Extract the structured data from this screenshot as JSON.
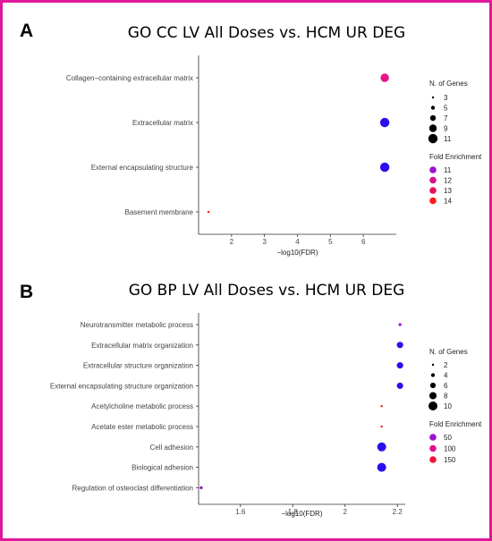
{
  "frame_color": "#e0189a",
  "panels": [
    {
      "letter": "A",
      "title": "GO CC LV All Doses vs. HCM UR DEG",
      "chart_data": {
        "type": "scatter",
        "title": "GO CC LV All Doses vs. HCM UR DEG",
        "xlabel": "−log10(FDR)",
        "ylabel": "",
        "xlim": [
          1.0,
          7.0
        ],
        "xticks": [
          2,
          3,
          4,
          5,
          6
        ],
        "categories": [
          "Collagen−containing extracellular matrix",
          "Extracellular matrix",
          "External encapsulating structure",
          "Basement membrane"
        ],
        "points": [
          {
            "category": "Collagen−containing extracellular matrix",
            "x": 6.65,
            "genes": 10,
            "fold_enrichment": 12,
            "color": "#e8148c"
          },
          {
            "category": "Extracellular matrix",
            "x": 6.65,
            "genes": 11,
            "fold_enrichment": 10.5,
            "color": "#2a10ec"
          },
          {
            "category": "External encapsulating structure",
            "x": 6.65,
            "genes": 11,
            "fold_enrichment": 10.5,
            "color": "#2a10ec"
          },
          {
            "category": "Basement membrane",
            "x": 1.3,
            "genes": 3,
            "fold_enrichment": 14,
            "color": "#ff1010"
          }
        ],
        "size_legend": {
          "title": "N. of Genes",
          "values": [
            3,
            5,
            7,
            9,
            11
          ]
        },
        "color_legend": {
          "title": "Fold Enrichment",
          "values": [
            "11",
            "12",
            "13",
            "14"
          ],
          "colors": [
            "#9b12cf",
            "#d8108e",
            "#ec0f5d",
            "#ff1a1a"
          ]
        }
      }
    },
    {
      "letter": "B",
      "title": "GO BP LV All Doses vs. HCM UR DEG",
      "chart_data": {
        "type": "scatter",
        "title": "GO BP LV All Doses vs. HCM UR DEG",
        "xlabel": "−log10(FDR)",
        "ylabel": "",
        "xlim": [
          1.44,
          2.23
        ],
        "xticks": [
          1.6,
          1.8,
          2.0,
          2.2
        ],
        "categories": [
          "Neurotransmitter metabolic process",
          "Extracellular matrix organization",
          "Extracellular structure organization",
          "External encapsulating structure organization",
          "Acetylcholine metabolic process",
          "Acetate ester metabolic process",
          "Cell adhesion",
          "Biological adhesion",
          "Regulation of osteoclast differentiation"
        ],
        "points": [
          {
            "category": "Neurotransmitter metabolic process",
            "x": 2.21,
            "genes": 3,
            "fold_enrichment": 60,
            "color": "#a212d3"
          },
          {
            "category": "Extracellular matrix organization",
            "x": 2.21,
            "genes": 7,
            "fold_enrichment": 15,
            "color": "#2a10ec"
          },
          {
            "category": "Extracellular structure organization",
            "x": 2.21,
            "genes": 7,
            "fold_enrichment": 15,
            "color": "#2a10ec"
          },
          {
            "category": "External encapsulating structure organization",
            "x": 2.21,
            "genes": 7,
            "fold_enrichment": 15,
            "color": "#2a10ec"
          },
          {
            "category": "Acetylcholine metabolic process",
            "x": 2.14,
            "genes": 2,
            "fold_enrichment": 180,
            "color": "#ff1010"
          },
          {
            "category": "Acetate ester metabolic process",
            "x": 2.14,
            "genes": 2,
            "fold_enrichment": 180,
            "color": "#ff1010"
          },
          {
            "category": "Cell adhesion",
            "x": 2.14,
            "genes": 10,
            "fold_enrichment": 10,
            "color": "#2a10ec"
          },
          {
            "category": "Biological adhesion",
            "x": 2.14,
            "genes": 10,
            "fold_enrichment": 10,
            "color": "#2a10ec"
          },
          {
            "category": "Regulation of osteoclast differentiation",
            "x": 1.45,
            "genes": 3,
            "fold_enrichment": 50,
            "color": "#9a12cf"
          }
        ],
        "size_legend": {
          "title": "N. of Genes",
          "values": [
            2,
            4,
            6,
            8,
            10
          ]
        },
        "color_legend": {
          "title": "Fold Enrichment",
          "values": [
            "50",
            "100",
            "150"
          ],
          "colors": [
            "#9b12cf",
            "#e0108e",
            "#f0143c"
          ]
        }
      }
    }
  ]
}
